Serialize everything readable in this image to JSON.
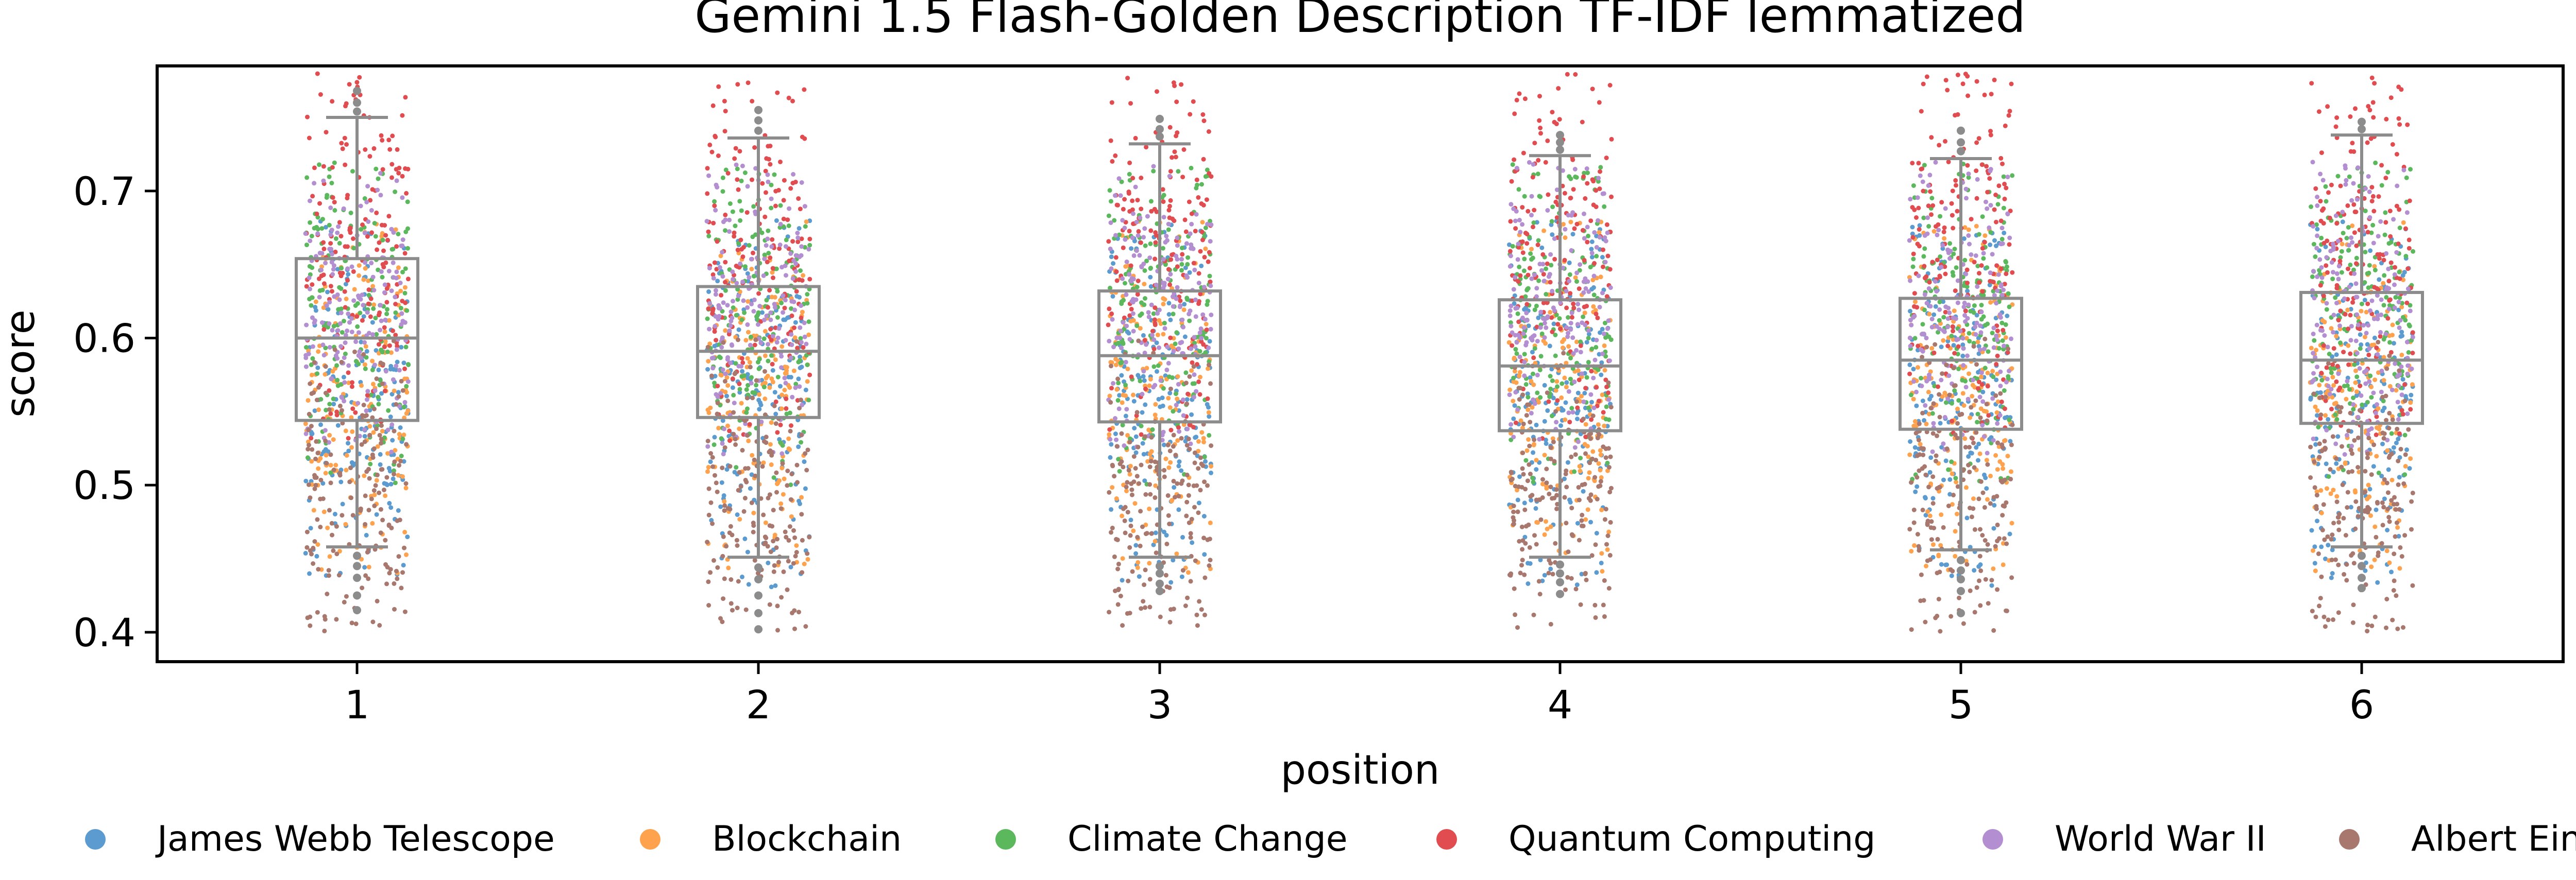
{
  "chart_data": {
    "type": "box+strip",
    "title": "Gemini 1.5 Flash-Golden Description TF-IDF lemmatized",
    "xlabel": "position",
    "ylabel": "score",
    "categories": [
      "1",
      "2",
      "3",
      "4",
      "5",
      "6"
    ],
    "ylim": [
      0.38,
      0.785
    ],
    "yticks": [
      0.4,
      0.5,
      0.6,
      0.7
    ],
    "ytick_labels": [
      "0.4",
      "0.5",
      "0.6",
      "0.7"
    ],
    "grid": false,
    "legend_position": "bottom",
    "boxes": [
      {
        "category": "1",
        "whisker_low": 0.458,
        "q1": 0.544,
        "median": 0.6,
        "q3": 0.654,
        "whisker_high": 0.75,
        "outliers": [
          0.452,
          0.445,
          0.437,
          0.425,
          0.415,
          0.754,
          0.76,
          0.768
        ]
      },
      {
        "category": "2",
        "whisker_low": 0.451,
        "q1": 0.546,
        "median": 0.591,
        "q3": 0.635,
        "whisker_high": 0.736,
        "outliers": [
          0.444,
          0.436,
          0.425,
          0.413,
          0.402,
          0.741,
          0.748,
          0.755
        ]
      },
      {
        "category": "3",
        "whisker_low": 0.451,
        "q1": 0.543,
        "median": 0.588,
        "q3": 0.632,
        "whisker_high": 0.732,
        "outliers": [
          0.445,
          0.44,
          0.433,
          0.428,
          0.737,
          0.742,
          0.749
        ]
      },
      {
        "category": "4",
        "whisker_low": 0.451,
        "q1": 0.537,
        "median": 0.581,
        "q3": 0.626,
        "whisker_high": 0.724,
        "outliers": [
          0.446,
          0.44,
          0.434,
          0.426,
          0.728,
          0.733,
          0.738
        ]
      },
      {
        "category": "5",
        "whisker_low": 0.456,
        "q1": 0.538,
        "median": 0.585,
        "q3": 0.627,
        "whisker_high": 0.722,
        "outliers": [
          0.449,
          0.442,
          0.436,
          0.428,
          0.413,
          0.727,
          0.733,
          0.741
        ]
      },
      {
        "category": "6",
        "whisker_low": 0.458,
        "q1": 0.542,
        "median": 0.585,
        "q3": 0.631,
        "whisker_high": 0.738,
        "outliers": [
          0.452,
          0.445,
          0.437,
          0.43,
          0.742,
          0.747
        ]
      }
    ],
    "series": [
      {
        "name": "James Webb Telescope",
        "color": "#5b9bd0",
        "range": [
          0.45,
          0.66
        ],
        "center": 0.56
      },
      {
        "name": "Blockchain",
        "color": "#ffa24e",
        "range": [
          0.46,
          0.66
        ],
        "center": 0.56
      },
      {
        "name": "Climate Change",
        "color": "#5cb85c",
        "range": [
          0.52,
          0.7
        ],
        "center": 0.62
      },
      {
        "name": "Quantum Computing",
        "color": "#e04c4f",
        "range": [
          0.55,
          0.76
        ],
        "center": 0.66
      },
      {
        "name": "World War II",
        "color": "#b38ed0",
        "range": [
          0.54,
          0.7
        ],
        "center": 0.62
      },
      {
        "name": "Albert Einstein",
        "color": "#a8786e",
        "range": [
          0.42,
          0.58
        ],
        "center": 0.49
      }
    ]
  },
  "colors": {
    "box_edge": "#8c8c8c",
    "outlier": "#8c8c8c",
    "axis": "#000000"
  }
}
